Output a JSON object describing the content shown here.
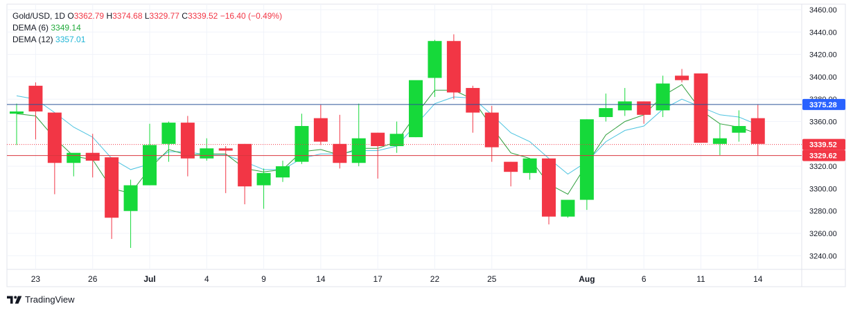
{
  "legend": {
    "symbol": "Gold/USD, 1D",
    "open_label": "O",
    "open": "3362.79",
    "high_label": "H",
    "high": "3374.68",
    "low_label": "L",
    "low": "3329.77",
    "close_label": "C",
    "close": "3339.52",
    "change": "−16.40 (−0.49%)",
    "dema6_label": "DEMA (6)",
    "dema6_value": "3349.14",
    "dema12_label": "DEMA (12)",
    "dema12_value": "3357.01"
  },
  "brand": {
    "name": "TradingView"
  },
  "colors": {
    "up": "#16d93a",
    "down": "#f23645",
    "dema6": "#2e9e3b",
    "dema12": "#4cc3e0",
    "hline": "#2962ff",
    "low_line": "#d9363e"
  },
  "chart_data": {
    "type": "candlestick",
    "title": "Gold/USD, 1D",
    "y_ticks": [
      "3460.00",
      "3440.00",
      "3420.00",
      "3400.00",
      "3380.00",
      "3360.00",
      "3320.00",
      "3300.00",
      "3280.00",
      "3260.00",
      "3240.00"
    ],
    "ylim": [
      3228,
      3462
    ],
    "x_ticks": [
      {
        "label": "23",
        "bar": 1
      },
      {
        "label": "26",
        "bar": 4
      },
      {
        "label": "Jul",
        "bar": 7,
        "bold": true
      },
      {
        "label": "4",
        "bar": 10
      },
      {
        "label": "9",
        "bar": 13
      },
      {
        "label": "14",
        "bar": 16
      },
      {
        "label": "17",
        "bar": 19
      },
      {
        "label": "22",
        "bar": 22
      },
      {
        "label": "25",
        "bar": 25
      },
      {
        "label": "Aug",
        "bar": 30,
        "bold": true
      },
      {
        "label": "6",
        "bar": 33
      },
      {
        "label": "11",
        "bar": 36
      },
      {
        "label": "14",
        "bar": 39
      }
    ],
    "candles": [
      {
        "o": 3367,
        "h": 3376,
        "l": 3339,
        "c": 3369
      },
      {
        "o": 3392,
        "h": 3395,
        "l": 3344,
        "c": 3369
      },
      {
        "o": 3368,
        "h": 3368,
        "l": 3295,
        "c": 3323
      },
      {
        "o": 3323,
        "h": 3331,
        "l": 3311,
        "c": 3332
      },
      {
        "o": 3332,
        "h": 3349,
        "l": 3310,
        "c": 3325
      },
      {
        "o": 3328,
        "h": 3328,
        "l": 3255,
        "c": 3274
      },
      {
        "o": 3280,
        "h": 3308,
        "l": 3247,
        "c": 3303
      },
      {
        "o": 3303,
        "h": 3358,
        "l": 3303,
        "c": 3339
      },
      {
        "o": 3340,
        "h": 3360,
        "l": 3324,
        "c": 3359
      },
      {
        "o": 3359,
        "h": 3365,
        "l": 3311,
        "c": 3327
      },
      {
        "o": 3327,
        "h": 3345,
        "l": 3325,
        "c": 3336
      },
      {
        "o": 3336,
        "h": 3338,
        "l": 3296,
        "c": 3334
      },
      {
        "o": 3340,
        "h": 3340,
        "l": 3286,
        "c": 3302
      },
      {
        "o": 3303,
        "h": 3318,
        "l": 3282,
        "c": 3314
      },
      {
        "o": 3310,
        "h": 3325,
        "l": 3306,
        "c": 3320
      },
      {
        "o": 3324,
        "h": 3367,
        "l": 3322,
        "c": 3356
      },
      {
        "o": 3363,
        "h": 3375,
        "l": 3339,
        "c": 3342
      },
      {
        "o": 3340,
        "h": 3366,
        "l": 3318,
        "c": 3323
      },
      {
        "o": 3323,
        "h": 3376,
        "l": 3320,
        "c": 3345
      },
      {
        "o": 3350,
        "h": 3350,
        "l": 3309,
        "c": 3338
      },
      {
        "o": 3338,
        "h": 3360,
        "l": 3332,
        "c": 3349
      },
      {
        "o": 3346,
        "h": 3396,
        "l": 3346,
        "c": 3397
      },
      {
        "o": 3399,
        "h": 3433,
        "l": 3382,
        "c": 3432
      },
      {
        "o": 3432,
        "h": 3438,
        "l": 3380,
        "c": 3386
      },
      {
        "o": 3390,
        "h": 3392,
        "l": 3350,
        "c": 3368
      },
      {
        "o": 3368,
        "h": 3374,
        "l": 3324,
        "c": 3337
      },
      {
        "o": 3324,
        "h": 3324,
        "l": 3302,
        "c": 3315
      },
      {
        "o": 3314,
        "h": 3325,
        "l": 3308,
        "c": 3327
      },
      {
        "o": 3327,
        "h": 3327,
        "l": 3268,
        "c": 3275
      },
      {
        "o": 3275,
        "h": 3289,
        "l": 3274,
        "c": 3290
      },
      {
        "o": 3290,
        "h": 3362,
        "l": 3281,
        "c": 3362
      },
      {
        "o": 3364,
        "h": 3385,
        "l": 3360,
        "c": 3372
      },
      {
        "o": 3370,
        "h": 3390,
        "l": 3365,
        "c": 3378
      },
      {
        "o": 3378,
        "h": 3378,
        "l": 3358,
        "c": 3366
      },
      {
        "o": 3370,
        "h": 3401,
        "l": 3364,
        "c": 3394
      },
      {
        "o": 3401,
        "h": 3407,
        "l": 3395,
        "c": 3397
      },
      {
        "o": 3403,
        "h": 3403,
        "l": 3341,
        "c": 3341
      },
      {
        "o": 3340,
        "h": 3358,
        "l": 3330,
        "c": 3345
      },
      {
        "o": 3350,
        "h": 3370,
        "l": 3342,
        "c": 3356
      },
      {
        "o": 3363,
        "h": 3375,
        "l": 3330,
        "c": 3340
      }
    ],
    "dema6": [
      3367,
      3365,
      3345,
      3329,
      3326,
      3300,
      3296,
      3318,
      3335,
      3330,
      3331,
      3331,
      3318,
      3315,
      3317,
      3333,
      3335,
      3330,
      3336,
      3336,
      3342,
      3366,
      3388,
      3388,
      3380,
      3355,
      3332,
      3327,
      3304,
      3295,
      3322,
      3348,
      3360,
      3366,
      3383,
      3393,
      3370,
      3358,
      3355,
      3349
    ],
    "dema12": [
      3383,
      3380,
      3368,
      3355,
      3346,
      3327,
      3317,
      3322,
      3333,
      3333,
      3330,
      3330,
      3324,
      3317,
      3317,
      3327,
      3331,
      3331,
      3334,
      3334,
      3338,
      3357,
      3376,
      3382,
      3381,
      3366,
      3350,
      3342,
      3327,
      3313,
      3324,
      3342,
      3352,
      3356,
      3371,
      3380,
      3373,
      3366,
      3364,
      3357
    ],
    "price_labels": [
      {
        "value": 3375.28,
        "label": "3375.28",
        "style": "blue"
      },
      {
        "value": 3339.52,
        "label": "3339.52",
        "style": "red"
      },
      {
        "value": 3329.62,
        "label": "3329.62",
        "style": "red"
      }
    ]
  }
}
